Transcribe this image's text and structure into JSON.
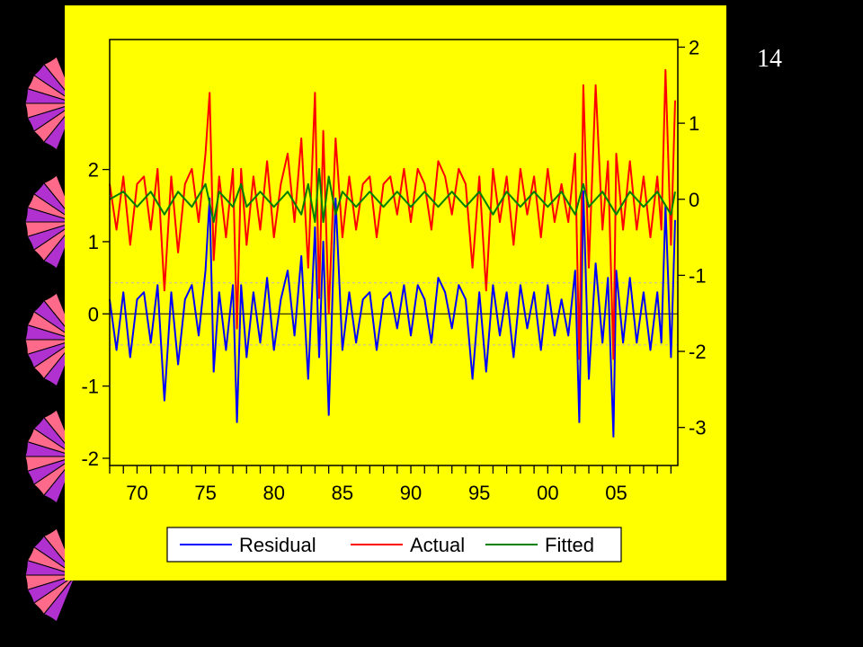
{
  "slide": {
    "number": "14"
  },
  "colors": {
    "background": "#000000",
    "panel": "#FFFF00",
    "residual": "#0000FF",
    "actual": "#FF0000",
    "fitted": "#008000",
    "fan_pink": "#FF6A8A",
    "fan_violet": "#B030D0"
  },
  "chart_data": {
    "type": "line",
    "x_tick_labels": [
      "70",
      "75",
      "80",
      "85",
      "90",
      "95",
      "00",
      "05"
    ],
    "x_tick_years": [
      1970,
      1975,
      1980,
      1985,
      1990,
      1995,
      2000,
      2005
    ],
    "xlim": [
      1968,
      2009.5
    ],
    "right_axis": {
      "tick_labels": [
        "2",
        "1",
        "0",
        "-1",
        "-2",
        "-3"
      ],
      "ticks": [
        2,
        1,
        0,
        -1,
        -2,
        -3
      ],
      "ylim": [
        -3.5,
        2.1
      ]
    },
    "left_axis": {
      "tick_labels": [
        "2",
        "1",
        "0",
        "-1",
        "-2"
      ],
      "ticks": [
        2,
        1,
        0,
        -1,
        -2
      ],
      "ylim": [
        -2.1,
        3.8
      ]
    },
    "residual_band": [
      -0.43,
      0.43
    ],
    "legend": {
      "placement": "bottom"
    },
    "series": [
      {
        "name": "Residual",
        "axis": "left",
        "color": "#0000FF",
        "x": [
          1968.0,
          1968.5,
          1969.0,
          1969.5,
          1970.0,
          1970.5,
          1971.0,
          1971.5,
          1972.0,
          1972.5,
          1973.0,
          1973.5,
          1974.0,
          1974.5,
          1975.0,
          1975.3,
          1975.6,
          1976.0,
          1976.5,
          1977.0,
          1977.3,
          1977.6,
          1978.0,
          1978.5,
          1979.0,
          1979.5,
          1980.0,
          1980.5,
          1981.0,
          1981.5,
          1982.0,
          1982.5,
          1983.0,
          1983.3,
          1983.6,
          1984.0,
          1984.5,
          1985.0,
          1985.5,
          1986.0,
          1986.5,
          1987.0,
          1987.5,
          1988.0,
          1988.5,
          1989.0,
          1989.5,
          1990.0,
          1990.5,
          1991.0,
          1991.5,
          1992.0,
          1992.5,
          1993.0,
          1993.5,
          1994.0,
          1994.5,
          1995.0,
          1995.5,
          1996.0,
          1996.5,
          1997.0,
          1997.5,
          1998.0,
          1998.5,
          1999.0,
          1999.5,
          2000.0,
          2000.5,
          2001.0,
          2001.5,
          2002.0,
          2002.3,
          2002.6,
          2003.0,
          2003.5,
          2004.0,
          2004.4,
          2004.8,
          2005.0,
          2005.5,
          2006.0,
          2006.5,
          2007.0,
          2007.5,
          2008.0,
          2008.3,
          2008.6,
          2009.0,
          2009.3
        ],
        "y": [
          0.2,
          -0.5,
          0.3,
          -0.6,
          0.2,
          0.3,
          -0.4,
          0.4,
          -1.2,
          0.3,
          -0.7,
          0.2,
          0.4,
          -0.3,
          0.6,
          1.6,
          -0.8,
          0.3,
          -0.5,
          0.4,
          -1.5,
          0.4,
          -0.6,
          0.3,
          -0.4,
          0.5,
          -0.5,
          0.2,
          0.6,
          -0.3,
          0.8,
          -0.9,
          1.2,
          -0.6,
          1.0,
          -1.4,
          1.6,
          -0.5,
          0.3,
          -0.4,
          0.2,
          0.3,
          -0.5,
          0.2,
          0.3,
          -0.2,
          0.4,
          -0.3,
          0.4,
          0.2,
          -0.4,
          0.5,
          0.3,
          -0.2,
          0.4,
          0.2,
          -0.9,
          0.3,
          -0.8,
          0.4,
          -0.3,
          0.3,
          -0.6,
          0.4,
          -0.2,
          0.3,
          -0.5,
          0.4,
          -0.3,
          0.2,
          -0.3,
          0.6,
          -1.5,
          1.7,
          -0.9,
          0.7,
          -0.4,
          0.5,
          -1.7,
          0.6,
          -0.4,
          0.5,
          -0.4,
          0.3,
          -0.5,
          0.3,
          -0.4,
          1.5,
          -0.6,
          1.3
        ]
      },
      {
        "name": "Actual",
        "axis": "right",
        "color": "#FF0000",
        "x": [
          1968.0,
          1968.5,
          1969.0,
          1969.5,
          1970.0,
          1970.5,
          1971.0,
          1971.5,
          1972.0,
          1972.5,
          1973.0,
          1973.5,
          1974.0,
          1974.5,
          1975.0,
          1975.3,
          1975.6,
          1976.0,
          1976.5,
          1977.0,
          1977.3,
          1977.6,
          1978.0,
          1978.5,
          1979.0,
          1979.5,
          1980.0,
          1980.5,
          1981.0,
          1981.5,
          1982.0,
          1982.5,
          1983.0,
          1983.3,
          1983.6,
          1984.0,
          1984.5,
          1985.0,
          1985.5,
          1986.0,
          1986.5,
          1987.0,
          1987.5,
          1988.0,
          1988.5,
          1989.0,
          1989.5,
          1990.0,
          1990.5,
          1991.0,
          1991.5,
          1992.0,
          1992.5,
          1993.0,
          1993.5,
          1994.0,
          1994.5,
          1995.0,
          1995.5,
          1996.0,
          1996.5,
          1997.0,
          1997.5,
          1998.0,
          1998.5,
          1999.0,
          1999.5,
          2000.0,
          2000.5,
          2001.0,
          2001.5,
          2002.0,
          2002.3,
          2002.6,
          2003.0,
          2003.5,
          2004.0,
          2004.4,
          2004.8,
          2005.0,
          2005.5,
          2006.0,
          2006.5,
          2007.0,
          2007.5,
          2008.0,
          2008.3,
          2008.6,
          2009.0,
          2009.3
        ],
        "y": [
          0.2,
          -0.4,
          0.3,
          -0.6,
          0.2,
          0.3,
          -0.4,
          0.4,
          -1.2,
          0.3,
          -0.7,
          0.2,
          0.4,
          -0.3,
          0.6,
          1.4,
          -0.8,
          0.3,
          -0.5,
          0.4,
          -1.7,
          0.4,
          -0.6,
          0.3,
          -0.4,
          0.5,
          -0.5,
          0.2,
          0.6,
          -0.3,
          0.8,
          -0.9,
          1.4,
          -1.3,
          0.9,
          -1.5,
          0.8,
          -0.5,
          0.3,
          -0.4,
          0.2,
          0.3,
          -0.5,
          0.2,
          0.3,
          -0.2,
          0.4,
          -0.3,
          0.4,
          0.2,
          -0.4,
          0.5,
          0.3,
          -0.2,
          0.4,
          0.2,
          -0.9,
          0.3,
          -1.2,
          0.4,
          -0.3,
          0.3,
          -0.6,
          0.4,
          -0.2,
          0.3,
          -0.5,
          0.4,
          -0.3,
          0.2,
          -0.3,
          0.6,
          -2.1,
          1.5,
          -0.9,
          1.5,
          -0.4,
          0.5,
          -2.1,
          0.6,
          -0.4,
          0.5,
          -0.4,
          0.3,
          -0.5,
          0.3,
          -0.4,
          1.7,
          -0.6,
          1.3
        ]
      },
      {
        "name": "Fitted",
        "axis": "right",
        "color": "#008000",
        "x": [
          1968.0,
          1969.0,
          1970.0,
          1971.0,
          1972.0,
          1973.0,
          1974.0,
          1975.0,
          1975.6,
          1976.0,
          1977.0,
          1977.6,
          1978.0,
          1979.0,
          1980.0,
          1981.0,
          1982.0,
          1982.5,
          1983.0,
          1983.3,
          1983.6,
          1984.0,
          1984.5,
          1985.0,
          1986.0,
          1987.0,
          1988.0,
          1989.0,
          1990.0,
          1991.0,
          1992.0,
          1993.0,
          1994.0,
          1995.0,
          1996.0,
          1997.0,
          1998.0,
          1999.0,
          2000.0,
          2001.0,
          2002.0,
          2002.6,
          2003.0,
          2004.0,
          2005.0,
          2006.0,
          2007.0,
          2008.0,
          2009.0,
          2009.3
        ],
        "y": [
          0.0,
          0.1,
          -0.1,
          0.1,
          -0.2,
          0.1,
          -0.1,
          0.2,
          -0.3,
          0.1,
          -0.1,
          0.2,
          -0.1,
          0.1,
          -0.1,
          0.1,
          -0.2,
          0.2,
          -0.3,
          0.4,
          -0.3,
          0.3,
          -0.2,
          0.1,
          -0.1,
          0.1,
          -0.1,
          0.1,
          -0.1,
          0.1,
          -0.1,
          0.1,
          -0.1,
          0.1,
          -0.2,
          0.1,
          -0.1,
          0.1,
          -0.1,
          0.1,
          -0.2,
          0.2,
          -0.1,
          0.1,
          -0.2,
          0.1,
          -0.1,
          0.1,
          -0.2,
          0.1
        ]
      }
    ]
  }
}
